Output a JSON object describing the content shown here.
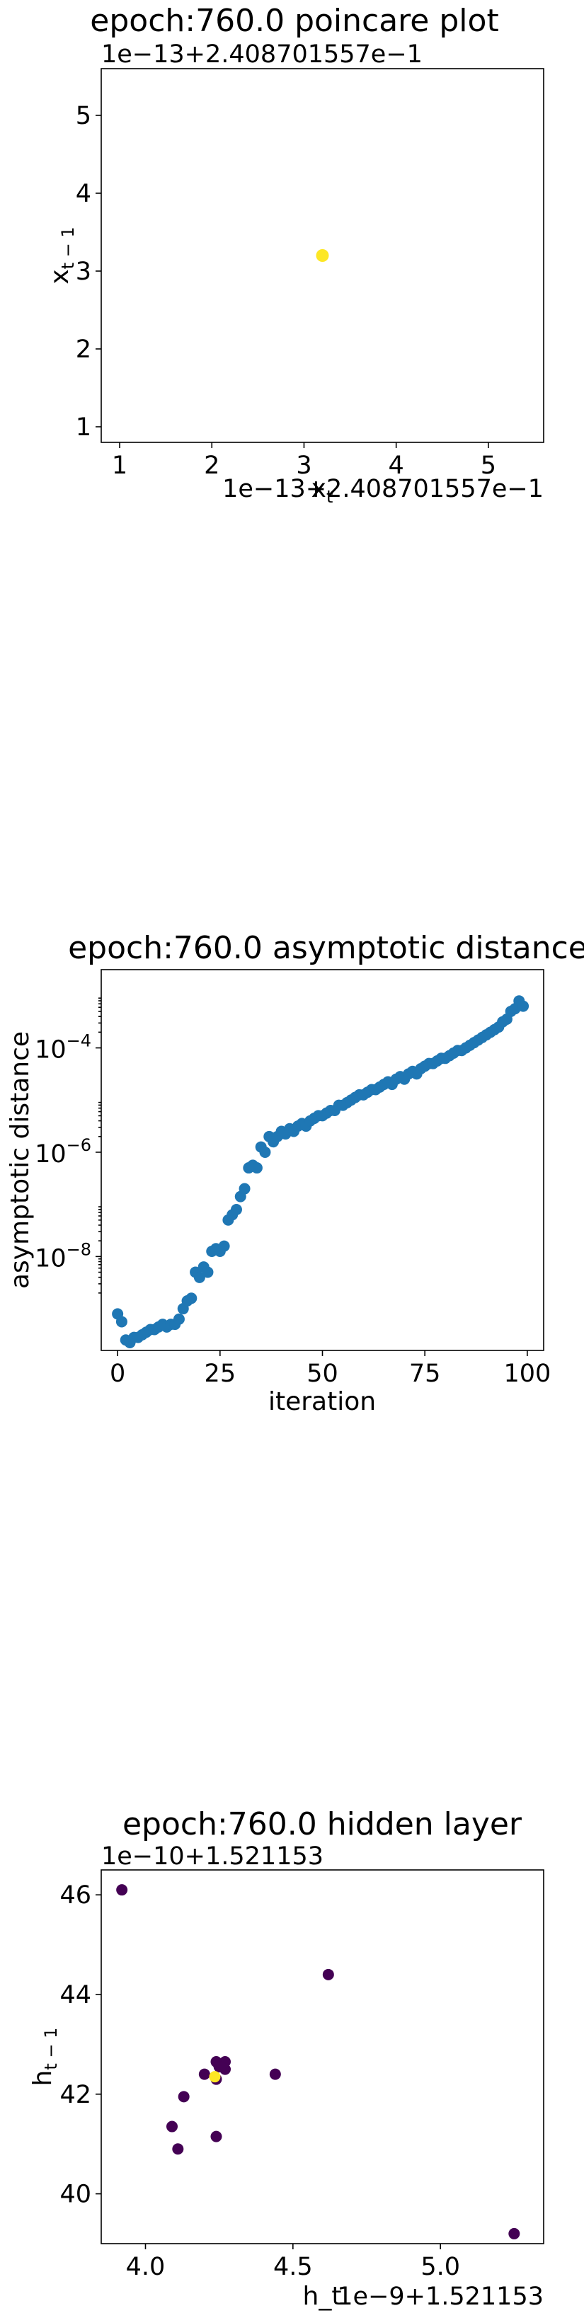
{
  "chart_data": [
    {
      "type": "scatter",
      "title": "epoch:760.0 poincare plot",
      "xlabel": "x_t",
      "ylabel": "x_{t-1}",
      "x_offset_text": "1e−13+2.408701557e−1",
      "y_offset_text": "1e−13+2.408701557e−1",
      "xlim": [
        0.8,
        5.6
      ],
      "ylim": [
        0.8,
        5.6
      ],
      "x_ticks": [
        1,
        2,
        3,
        4,
        5
      ],
      "y_ticks": [
        1,
        2,
        3,
        4,
        5
      ],
      "x_tick_labels": [
        "1",
        "2",
        "3",
        "4",
        "5"
      ],
      "y_tick_labels": [
        "1",
        "2",
        "3",
        "4",
        "5"
      ],
      "points": [
        {
          "x": 3.2,
          "y": 3.2,
          "color": "#fde725"
        }
      ]
    },
    {
      "type": "scatter",
      "title": "epoch:760.0 asymptotic distance",
      "xlabel": "iteration",
      "ylabel": "asymptotic distance",
      "yscale": "log",
      "xlim": [
        -4,
        104
      ],
      "ylim_log10": [
        -9.8,
        -2.5
      ],
      "x_ticks": [
        0,
        25,
        50,
        75,
        100
      ],
      "x_tick_labels": [
        "0",
        "25",
        "50",
        "75",
        "100"
      ],
      "y_ticks_log10": [
        -8,
        -6,
        -4
      ],
      "y_tick_base": "10",
      "y_tick_exponents": [
        "−8",
        "−6",
        "−4"
      ],
      "color": "#1f77b4",
      "x": [
        0,
        1,
        2,
        3,
        4,
        5,
        6,
        7,
        8,
        9,
        10,
        11,
        12,
        13,
        14,
        15,
        16,
        17,
        18,
        19,
        20,
        21,
        22,
        23,
        24,
        25,
        26,
        27,
        28,
        29,
        30,
        31,
        32,
        33,
        34,
        35,
        36,
        37,
        38,
        39,
        40,
        41,
        42,
        43,
        44,
        45,
        46,
        47,
        48,
        49,
        50,
        51,
        52,
        53,
        54,
        55,
        56,
        57,
        58,
        59,
        60,
        61,
        62,
        63,
        64,
        65,
        66,
        67,
        68,
        69,
        70,
        71,
        72,
        73,
        74,
        75,
        76,
        77,
        78,
        79,
        80,
        81,
        82,
        83,
        84,
        85,
        86,
        87,
        88,
        89,
        90,
        91,
        92,
        93,
        94,
        95,
        96,
        97,
        98,
        99
      ],
      "y_log10": [
        -9.1,
        -9.25,
        -9.6,
        -9.65,
        -9.55,
        -9.55,
        -9.5,
        -9.45,
        -9.4,
        -9.4,
        -9.35,
        -9.3,
        -9.35,
        -9.3,
        -9.3,
        -9.2,
        -9.0,
        -8.85,
        -8.8,
        -8.3,
        -8.4,
        -8.2,
        -8.3,
        -7.9,
        -7.85,
        -7.9,
        -7.8,
        -7.3,
        -7.2,
        -7.1,
        -6.85,
        -6.7,
        -6.3,
        -6.25,
        -6.3,
        -5.9,
        -6.0,
        -5.7,
        -5.8,
        -5.7,
        -5.6,
        -5.65,
        -5.55,
        -5.6,
        -5.5,
        -5.45,
        -5.5,
        -5.4,
        -5.35,
        -5.3,
        -5.3,
        -5.25,
        -5.2,
        -5.2,
        -5.1,
        -5.1,
        -5.05,
        -5.0,
        -4.95,
        -4.9,
        -4.9,
        -4.85,
        -4.8,
        -4.8,
        -4.75,
        -4.7,
        -4.65,
        -4.7,
        -4.6,
        -4.55,
        -4.6,
        -4.5,
        -4.45,
        -4.5,
        -4.4,
        -4.35,
        -4.3,
        -4.3,
        -4.25,
        -4.2,
        -4.2,
        -4.15,
        -4.1,
        -4.05,
        -4.05,
        -4.0,
        -3.95,
        -3.9,
        -3.85,
        -3.8,
        -3.75,
        -3.7,
        -3.65,
        -3.6,
        -3.5,
        -3.45,
        -3.3,
        -3.25,
        -3.1,
        -3.2
      ]
    },
    {
      "type": "scatter",
      "title": "epoch:760.0 hidden layer",
      "xlabel": "h_t",
      "ylabel": "h_{t-1}",
      "x_offset_text": "1e−9+1.521153",
      "y_offset_text": "1e−10+1.521153",
      "xlim": [
        3.85,
        5.35
      ],
      "ylim": [
        39.0,
        46.5
      ],
      "x_ticks": [
        4.0,
        4.5,
        5.0
      ],
      "x_tick_labels": [
        "4.0",
        "4.5",
        "5.0"
      ],
      "y_ticks": [
        40,
        42,
        44,
        46
      ],
      "y_tick_labels": [
        "40",
        "42",
        "44",
        "46"
      ],
      "points": [
        {
          "x": 3.92,
          "y": 46.1,
          "color": "#440154"
        },
        {
          "x": 4.62,
          "y": 44.4,
          "color": "#440154"
        },
        {
          "x": 4.24,
          "y": 42.65,
          "color": "#440154"
        },
        {
          "x": 4.27,
          "y": 42.65,
          "color": "#440154"
        },
        {
          "x": 4.25,
          "y": 42.55,
          "color": "#440154"
        },
        {
          "x": 4.27,
          "y": 42.5,
          "color": "#440154"
        },
        {
          "x": 4.2,
          "y": 42.4,
          "color": "#440154"
        },
        {
          "x": 4.44,
          "y": 42.4,
          "color": "#440154"
        },
        {
          "x": 4.24,
          "y": 42.3,
          "color": "#440154"
        },
        {
          "x": 4.13,
          "y": 41.95,
          "color": "#440154"
        },
        {
          "x": 4.09,
          "y": 41.35,
          "color": "#440154"
        },
        {
          "x": 4.11,
          "y": 40.9,
          "color": "#440154"
        },
        {
          "x": 4.24,
          "y": 41.15,
          "color": "#440154"
        },
        {
          "x": 5.25,
          "y": 39.2,
          "color": "#440154"
        },
        {
          "x": 4.235,
          "y": 42.35,
          "color": "#fde725"
        }
      ]
    }
  ]
}
